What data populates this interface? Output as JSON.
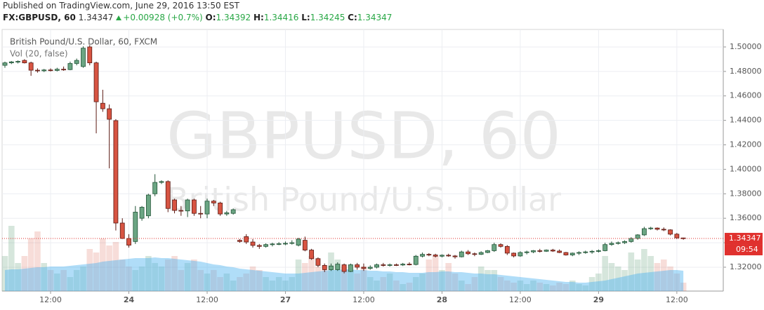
{
  "header": {
    "published": "Published on TradingView.com, June 29, 2016 13:50 EST",
    "symbol": "FX:GBPUSD, 60",
    "change": "+0.00928 (+0.7%)",
    "open_label": "O:",
    "high_label": "H:",
    "low_label": "L:",
    "close_label": "C:"
  },
  "chart_data": {
    "type": "candlestick",
    "title": "British Pound/U.S. Dollar, 60, FXCM",
    "indicator": "Vol (20, false)",
    "watermark": "GBPUSD, 60",
    "watermark_subtitle": "British Pound/U.S. Dollar",
    "countdown": "09:54",
    "categories": [
      null,
      null,
      null,
      null,
      null,
      null,
      null,
      "12:00",
      null,
      null,
      null,
      null,
      null,
      null,
      null,
      null,
      null,
      null,
      null,
      "24",
      null,
      null,
      null,
      null,
      null,
      null,
      null,
      null,
      null,
      null,
      null,
      "12:00",
      null,
      null,
      null,
      null,
      null,
      null,
      null,
      null,
      null,
      null,
      null,
      "27",
      null,
      null,
      null,
      null,
      null,
      null,
      null,
      null,
      null,
      null,
      null,
      "12:00",
      null,
      null,
      null,
      null,
      null,
      null,
      null,
      null,
      null,
      null,
      null,
      "28",
      null,
      null,
      null,
      null,
      null,
      null,
      null,
      null,
      null,
      null,
      null,
      "12:00",
      null,
      null,
      null,
      null,
      null,
      null,
      null,
      null,
      null,
      null,
      null,
      "29",
      null,
      null,
      null,
      null,
      null,
      null,
      null,
      null,
      null,
      null,
      null,
      "12:00",
      null
    ],
    "open": [
      1.485,
      1.487,
      1.4878,
      1.489,
      1.487,
      1.481,
      1.4805,
      1.4812,
      1.4808,
      1.4818,
      1.4815,
      1.4865,
      1.484,
      1.5,
      1.487,
      1.454,
      1.4495,
      1.4398,
      1.3561,
      1.3435,
      1.341,
      1.36,
      1.362,
      1.38,
      1.3893,
      1.39,
      1.375,
      1.3664,
      1.366,
      1.375,
      1.364,
      1.3635,
      1.374,
      1.3725,
      1.3635,
      1.364,
      1.342,
      1.345,
      1.3406,
      1.3378,
      1.337,
      1.3385,
      1.339,
      1.3392,
      1.3395,
      1.338,
      1.342,
      1.334,
      1.327,
      1.3215,
      1.318,
      1.318,
      1.322,
      1.3165,
      1.322,
      1.32,
      1.319,
      1.32,
      1.322,
      1.3215,
      1.322,
      1.3218,
      1.3225,
      1.3222,
      1.329,
      1.3305,
      1.33,
      1.329,
      1.3298,
      1.3292,
      1.3285,
      1.3325,
      1.331,
      1.3305,
      1.332,
      1.3335,
      1.3385,
      1.337,
      1.3315,
      1.3292,
      1.332,
      1.3325,
      1.3335,
      1.333,
      1.334,
      1.3332,
      1.332,
      1.33,
      1.3315,
      1.332,
      1.3325,
      1.333,
      1.3335,
      1.3385,
      1.3395,
      1.34,
      1.341,
      1.3435,
      1.3464,
      1.3515,
      1.352,
      1.351,
      1.3505,
      1.347,
      1.34392
    ],
    "high": [
      1.488,
      1.4885,
      1.489,
      1.49,
      1.488,
      1.4825,
      1.482,
      1.4825,
      1.483,
      1.484,
      1.488,
      1.4905,
      1.5005,
      1.5015,
      1.488,
      1.465,
      1.453,
      1.441,
      1.36,
      1.347,
      1.37,
      1.37,
      1.38,
      1.396,
      1.391,
      1.391,
      1.376,
      1.37,
      1.376,
      1.376,
      1.37,
      1.376,
      1.375,
      1.3735,
      1.366,
      1.368,
      1.343,
      1.347,
      1.343,
      1.339,
      1.3395,
      1.34,
      1.3405,
      1.341,
      1.342,
      1.344,
      1.345,
      1.335,
      1.328,
      1.323,
      1.323,
      1.324,
      1.323,
      1.323,
      1.3235,
      1.323,
      1.3215,
      1.323,
      1.3235,
      1.323,
      1.323,
      1.3235,
      1.324,
      1.33,
      1.332,
      1.3315,
      1.331,
      1.3305,
      1.331,
      1.33,
      1.3335,
      1.334,
      1.332,
      1.333,
      1.334,
      1.34,
      1.3395,
      1.338,
      1.332,
      1.333,
      1.3335,
      1.334,
      1.335,
      1.3345,
      1.335,
      1.3345,
      1.3325,
      1.332,
      1.333,
      1.3335,
      1.334,
      1.3345,
      1.34,
      1.341,
      1.341,
      1.342,
      1.3445,
      1.347,
      1.353,
      1.353,
      1.3525,
      1.3525,
      1.351,
      1.348,
      1.34416
    ],
    "low": [
      1.483,
      1.486,
      1.4865,
      1.4865,
      1.4764,
      1.479,
      1.4795,
      1.48,
      1.48,
      1.4805,
      1.481,
      1.485,
      1.483,
      1.485,
      1.4294,
      1.447,
      1.4008,
      1.35,
      1.343,
      1.336,
      1.339,
      1.358,
      1.36,
      1.378,
      1.388,
      1.365,
      1.364,
      1.362,
      1.361,
      1.362,
      1.36,
      1.36,
      1.37,
      1.362,
      1.362,
      1.363,
      1.34,
      1.339,
      1.336,
      1.335,
      1.336,
      1.337,
      1.338,
      1.338,
      1.3385,
      1.337,
      1.333,
      1.326,
      1.32,
      1.316,
      1.317,
      1.317,
      1.315,
      1.316,
      1.318,
      1.317,
      1.318,
      1.319,
      1.3205,
      1.3205,
      1.321,
      1.321,
      1.3215,
      1.3215,
      1.328,
      1.329,
      1.328,
      1.328,
      1.3285,
      1.327,
      1.328,
      1.33,
      1.329,
      1.33,
      1.3315,
      1.3325,
      1.336,
      1.33,
      1.328,
      1.3285,
      1.3305,
      1.3315,
      1.332,
      1.3325,
      1.3325,
      1.3315,
      1.3295,
      1.329,
      1.33,
      1.331,
      1.331,
      1.332,
      1.333,
      1.3375,
      1.3385,
      1.339,
      1.34,
      1.3425,
      1.3455,
      1.3505,
      1.35,
      1.3495,
      1.346,
      1.343,
      1.34245
    ],
    "close": [
      1.487,
      1.4878,
      1.4882,
      1.487,
      1.481,
      1.4805,
      1.4812,
      1.4808,
      1.4818,
      1.4815,
      1.4865,
      1.489,
      1.499,
      1.487,
      1.4552,
      1.4495,
      1.4409,
      1.3561,
      1.3435,
      1.338,
      1.365,
      1.369,
      1.379,
      1.3893,
      1.39,
      1.368,
      1.3664,
      1.366,
      1.375,
      1.364,
      1.3635,
      1.374,
      1.3725,
      1.3635,
      1.3645,
      1.367,
      1.341,
      1.3406,
      1.3378,
      1.337,
      1.3385,
      1.339,
      1.3392,
      1.3395,
      1.34,
      1.343,
      1.334,
      1.327,
      1.3215,
      1.318,
      1.321,
      1.3225,
      1.3165,
      1.322,
      1.32,
      1.319,
      1.32,
      1.322,
      1.3215,
      1.322,
      1.3218,
      1.3225,
      1.3222,
      1.329,
      1.3305,
      1.33,
      1.329,
      1.3298,
      1.3292,
      1.3285,
      1.3325,
      1.331,
      1.3305,
      1.332,
      1.3335,
      1.3385,
      1.337,
      1.3315,
      1.3292,
      1.332,
      1.3325,
      1.3335,
      1.333,
      1.334,
      1.3332,
      1.332,
      1.33,
      1.3315,
      1.332,
      1.3325,
      1.333,
      1.3335,
      1.3385,
      1.3395,
      1.34,
      1.341,
      1.3435,
      1.3464,
      1.3515,
      1.352,
      1.351,
      1.3505,
      1.347,
      1.344,
      1.34347
    ],
    "volume": [
      50,
      93,
      40,
      50,
      75,
      85,
      40,
      30,
      25,
      30,
      20,
      30,
      35,
      60,
      55,
      75,
      65,
      70,
      45,
      35,
      30,
      35,
      50,
      40,
      35,
      45,
      50,
      30,
      40,
      45,
      30,
      25,
      30,
      20,
      25,
      15,
      20,
      25,
      35,
      30,
      20,
      15,
      20,
      15,
      20,
      45,
      40,
      50,
      35,
      30,
      55,
      45,
      35,
      30,
      25,
      35,
      20,
      15,
      20,
      25,
      15,
      10,
      12,
      20,
      25,
      45,
      50,
      30,
      40,
      25,
      15,
      10,
      20,
      35,
      30,
      30,
      20,
      15,
      12,
      15,
      10,
      15,
      12,
      10,
      8,
      12,
      10,
      15,
      10,
      8,
      20,
      25,
      50,
      40,
      35,
      30,
      55,
      45,
      60,
      50,
      40,
      45,
      35,
      25,
      12
    ],
    "volume_ma": [
      30,
      31,
      31,
      32,
      33,
      34,
      34,
      35,
      35,
      35,
      36,
      37,
      38,
      39,
      40,
      42,
      43,
      44,
      45,
      46,
      47,
      47,
      47,
      48,
      47,
      47,
      46,
      45,
      44,
      43,
      42,
      40,
      38,
      37,
      35,
      34,
      32,
      31,
      30,
      29,
      28,
      27,
      26,
      25,
      25,
      25,
      26,
      27,
      28,
      29,
      30,
      30,
      31,
      31,
      30,
      30,
      29,
      29,
      28,
      28,
      27,
      27,
      26,
      26,
      26,
      27,
      27,
      28,
      28,
      27,
      27,
      26,
      25,
      25,
      24,
      24,
      23,
      22,
      21,
      20,
      19,
      18,
      17,
      16,
      15,
      14,
      13,
      13,
      12,
      12,
      13,
      14,
      15,
      17,
      19,
      21,
      23,
      25,
      26,
      27,
      28,
      29,
      30,
      30,
      29
    ],
    "ylim": [
      1.3005,
      1.5143
    ],
    "yticks": [
      {
        "value": 1.32,
        "label": "1.32000"
      },
      {
        "value": 1.34,
        "label": "1.34000"
      },
      {
        "value": 1.36,
        "label": "1.36000"
      },
      {
        "value": 1.38,
        "label": "1.38000"
      },
      {
        "value": 1.4,
        "label": "1.40000"
      },
      {
        "value": 1.42,
        "label": "1.42000"
      },
      {
        "value": 1.44,
        "label": "1.44000"
      },
      {
        "value": 1.46,
        "label": "1.46000"
      },
      {
        "value": 1.48,
        "label": "1.48000"
      },
      {
        "value": 1.5,
        "label": "1.50000"
      }
    ],
    "y2lim": [
      0,
      373
    ],
    "grid": true,
    "up_color": "#6ba583",
    "down_color": "#d75442",
    "volume_up_color": "rgba(107,165,131,0.28)",
    "volume_down_color": "rgba(215,84,66,0.2)",
    "ma_color": "rgba(80,180,240,0.45)",
    "last_price_color": "#e0312e"
  }
}
